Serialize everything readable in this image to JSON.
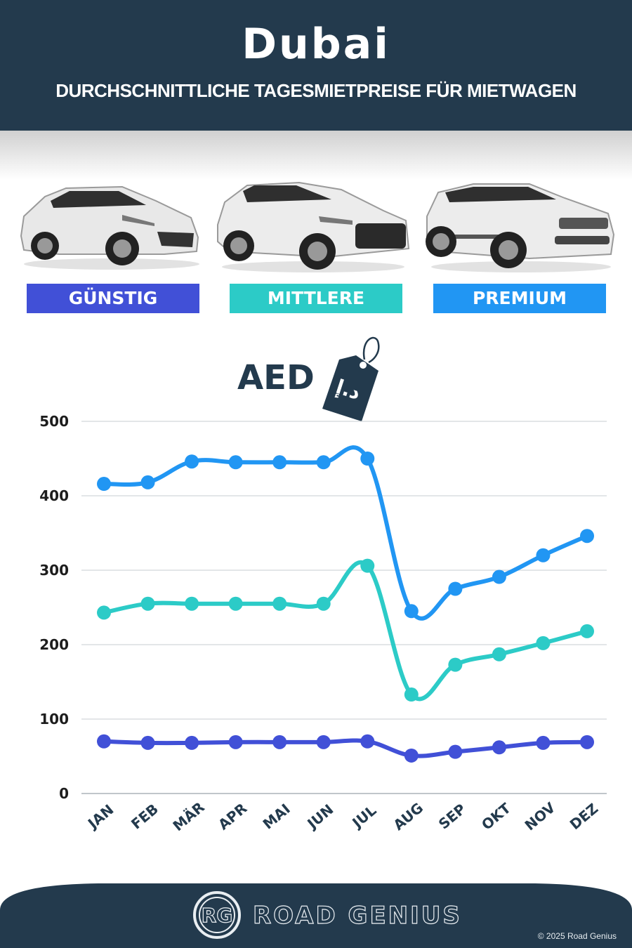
{
  "header": {
    "title": "Dubai",
    "subtitle": "DURCHSCHNITTLICHE TAGESMIETPREISE FÜR MIETWAGEN"
  },
  "categories": [
    {
      "label": "GÜNSTIG",
      "color": "#4150d7",
      "icon": "hatchback-car-icon"
    },
    {
      "label": "MITTLERE",
      "color": "#2ccbc7",
      "icon": "suv-car-icon"
    },
    {
      "label": "PREMIUM",
      "color": "#2196f3",
      "icon": "luxury-suv-car-icon"
    }
  ],
  "currency": {
    "label": "AED",
    "icon": "price-tag-icon",
    "tag_text": "د.إ"
  },
  "footer": {
    "brand": "ROAD GENIUS",
    "logo_text": "RG",
    "copyright": "© 2025 Road Genius"
  },
  "chart_data": {
    "type": "line",
    "categories": [
      "JAN",
      "FEB",
      "MÄR",
      "APR",
      "MAI",
      "JUN",
      "JUL",
      "AUG",
      "SEP",
      "OKT",
      "NOV",
      "DEZ"
    ],
    "ylim": [
      0,
      500
    ],
    "yticks": [
      0,
      100,
      200,
      300,
      400,
      500
    ],
    "grid": true,
    "series": [
      {
        "name": "PREMIUM",
        "color": "#2196f3",
        "values": [
          416,
          418,
          446,
          445,
          445,
          445,
          450,
          245,
          275,
          291,
          320,
          346
        ]
      },
      {
        "name": "MITTLERE",
        "color": "#2ccbc7",
        "values": [
          243,
          255,
          255,
          255,
          255,
          255,
          306,
          133,
          173,
          187,
          202,
          218
        ]
      },
      {
        "name": "GÜNSTIG",
        "color": "#4150d7",
        "values": [
          70,
          68,
          68,
          69,
          69,
          69,
          70,
          51,
          56,
          62,
          68,
          69
        ]
      }
    ]
  }
}
